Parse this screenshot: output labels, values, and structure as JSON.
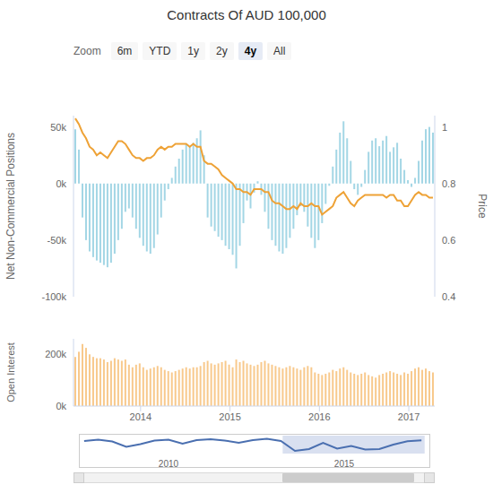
{
  "chart_data": [
    {
      "type": "bar",
      "title": "Contracts Of AUD 100,000",
      "y_label": "Net Non-Commercial Positions",
      "y2_label": "Price",
      "x": [
        2013.27,
        2013.31,
        2013.35,
        2013.39,
        2013.43,
        2013.47,
        2013.51,
        2013.55,
        2013.59,
        2013.63,
        2013.67,
        2013.71,
        2013.75,
        2013.79,
        2013.83,
        2013.87,
        2013.91,
        2013.95,
        2013.99,
        2014.03,
        2014.07,
        2014.11,
        2014.15,
        2014.19,
        2014.23,
        2014.27,
        2014.31,
        2014.35,
        2014.39,
        2014.43,
        2014.47,
        2014.51,
        2014.55,
        2014.59,
        2014.63,
        2014.67,
        2014.71,
        2014.75,
        2014.79,
        2014.83,
        2014.87,
        2014.91,
        2014.95,
        2014.99,
        2015.03,
        2015.07,
        2015.11,
        2015.15,
        2015.19,
        2015.23,
        2015.27,
        2015.31,
        2015.35,
        2015.39,
        2015.43,
        2015.47,
        2015.51,
        2015.55,
        2015.59,
        2015.63,
        2015.67,
        2015.71,
        2015.75,
        2015.79,
        2015.83,
        2015.87,
        2015.91,
        2015.95,
        2015.99,
        2016.03,
        2016.07,
        2016.11,
        2016.15,
        2016.19,
        2016.23,
        2016.27,
        2016.31,
        2016.35,
        2016.39,
        2016.43,
        2016.47,
        2016.51,
        2016.55,
        2016.59,
        2016.63,
        2016.67,
        2016.71,
        2016.75,
        2016.79,
        2016.83,
        2016.87,
        2016.91,
        2016.95,
        2016.99,
        2017.03,
        2017.07,
        2017.11,
        2017.15,
        2017.19,
        2017.23,
        2017.27
      ],
      "xlim": [
        2013.25,
        2017.29
      ],
      "ylim": [
        -100000,
        60000
      ],
      "yticks": [
        {
          "value": -100000,
          "label": "-100k"
        },
        {
          "value": -50000,
          "label": "-50k"
        },
        {
          "value": 0,
          "label": "0k"
        },
        {
          "value": 50000,
          "label": "50k"
        }
      ],
      "y2lim": [
        0.4,
        1.04
      ],
      "y2ticks": [
        0.4,
        0.6,
        0.8,
        1
      ],
      "grid": false,
      "series": [
        {
          "type": "bar",
          "color": "#a3d6e5",
          "values": [
            48000,
            30000,
            -30000,
            -50000,
            -60000,
            -65000,
            -68000,
            -70000,
            -72000,
            -74000,
            -70000,
            -62000,
            -50000,
            -40000,
            -25000,
            -22000,
            -30000,
            -40000,
            -48000,
            -55000,
            -60000,
            -62000,
            -57000,
            -45000,
            -30000,
            -15000,
            -5000,
            5000,
            15000,
            22000,
            30000,
            35000,
            33000,
            36000,
            40000,
            47000,
            25000,
            -30000,
            -38000,
            -42000,
            -47000,
            -50000,
            -55000,
            -58000,
            -63000,
            -75000,
            -55000,
            -35000,
            -15000,
            -22000,
            -8000,
            2000,
            -10000,
            -25000,
            -40000,
            -50000,
            -55000,
            -60000,
            -62000,
            -57000,
            -48000,
            -40000,
            -28000,
            -20000,
            -25000,
            -38000,
            -48000,
            -57000,
            -50000,
            -35000,
            -18000,
            -2000,
            15000,
            30000,
            45000,
            55000,
            40000,
            20000,
            -5000,
            -10000,
            -3000,
            12000,
            28000,
            38000,
            40000,
            33000,
            38000,
            42000,
            28000,
            32000,
            36000,
            22000,
            12000,
            3000,
            -3000,
            5000,
            20000,
            38000,
            48000,
            50000,
            45000
          ]
        },
        {
          "type": "line",
          "color": "#eea236",
          "axis": "y2",
          "values": [
            1.03,
            1.01,
            0.98,
            0.96,
            0.93,
            0.92,
            0.9,
            0.91,
            0.9,
            0.89,
            0.91,
            0.93,
            0.95,
            0.95,
            0.94,
            0.92,
            0.9,
            0.89,
            0.89,
            0.88,
            0.89,
            0.89,
            0.9,
            0.92,
            0.93,
            0.92,
            0.93,
            0.93,
            0.94,
            0.94,
            0.94,
            0.94,
            0.93,
            0.94,
            0.93,
            0.93,
            0.88,
            0.87,
            0.87,
            0.86,
            0.85,
            0.83,
            0.82,
            0.81,
            0.8,
            0.78,
            0.78,
            0.77,
            0.77,
            0.76,
            0.78,
            0.78,
            0.78,
            0.77,
            0.77,
            0.74,
            0.73,
            0.73,
            0.72,
            0.71,
            0.71,
            0.72,
            0.71,
            0.73,
            0.72,
            0.72,
            0.73,
            0.72,
            0.72,
            0.69,
            0.7,
            0.71,
            0.72,
            0.75,
            0.76,
            0.77,
            0.75,
            0.73,
            0.72,
            0.74,
            0.75,
            0.76,
            0.76,
            0.76,
            0.76,
            0.76,
            0.76,
            0.75,
            0.76,
            0.76,
            0.74,
            0.74,
            0.72,
            0.72,
            0.74,
            0.76,
            0.77,
            0.76,
            0.76,
            0.75,
            0.75
          ]
        }
      ]
    },
    {
      "type": "bar",
      "y_label": "Open Interest",
      "x": [
        2013.27,
        2013.31,
        2013.35,
        2013.39,
        2013.43,
        2013.47,
        2013.51,
        2013.55,
        2013.59,
        2013.63,
        2013.67,
        2013.71,
        2013.75,
        2013.79,
        2013.83,
        2013.87,
        2013.91,
        2013.95,
        2013.99,
        2014.03,
        2014.07,
        2014.11,
        2014.15,
        2014.19,
        2014.23,
        2014.27,
        2014.31,
        2014.35,
        2014.39,
        2014.43,
        2014.47,
        2014.51,
        2014.55,
        2014.59,
        2014.63,
        2014.67,
        2014.71,
        2014.75,
        2014.79,
        2014.83,
        2014.87,
        2014.91,
        2014.95,
        2014.99,
        2015.03,
        2015.07,
        2015.11,
        2015.15,
        2015.19,
        2015.23,
        2015.27,
        2015.31,
        2015.35,
        2015.39,
        2015.43,
        2015.47,
        2015.51,
        2015.55,
        2015.59,
        2015.63,
        2015.67,
        2015.71,
        2015.75,
        2015.79,
        2015.83,
        2015.87,
        2015.91,
        2015.95,
        2015.99,
        2016.03,
        2016.07,
        2016.11,
        2016.15,
        2016.19,
        2016.23,
        2016.27,
        2016.31,
        2016.35,
        2016.39,
        2016.43,
        2016.47,
        2016.51,
        2016.55,
        2016.59,
        2016.63,
        2016.67,
        2016.71,
        2016.75,
        2016.79,
        2016.83,
        2016.87,
        2016.91,
        2016.95,
        2016.99,
        2017.03,
        2017.07,
        2017.11,
        2017.15,
        2017.19,
        2017.23,
        2017.27
      ],
      "xlim": [
        2013.25,
        2017.29
      ],
      "xticks": [
        2014,
        2015,
        2016,
        2017
      ],
      "ylim": [
        0,
        260000
      ],
      "yticks": [
        {
          "value": 0,
          "label": "0k"
        },
        {
          "value": 200000,
          "label": "200k"
        }
      ],
      "grid": false,
      "color": "#f8c98c",
      "values": [
        190000,
        210000,
        240000,
        225000,
        200000,
        190000,
        185000,
        185000,
        180000,
        170000,
        175000,
        185000,
        180000,
        175000,
        180000,
        160000,
        150000,
        160000,
        165000,
        150000,
        140000,
        145000,
        150000,
        155000,
        150000,
        140000,
        135000,
        130000,
        135000,
        140000,
        145000,
        150000,
        145000,
        150000,
        150000,
        155000,
        170000,
        175000,
        165000,
        160000,
        165000,
        170000,
        175000,
        160000,
        150000,
        180000,
        170000,
        175000,
        165000,
        160000,
        155000,
        160000,
        170000,
        175000,
        165000,
        160000,
        155000,
        150000,
        145000,
        150000,
        155000,
        150000,
        145000,
        140000,
        150000,
        155000,
        150000,
        130000,
        125000,
        120000,
        125000,
        130000,
        140000,
        135000,
        145000,
        150000,
        140000,
        130000,
        125000,
        120000,
        125000,
        130000,
        120000,
        115000,
        110000,
        120000,
        125000,
        130000,
        135000,
        130000,
        125000,
        120000,
        130000,
        125000,
        135000,
        145000,
        150000,
        140000,
        145000,
        135000,
        130000
      ]
    },
    {
      "type": "line",
      "x": [
        2007.6,
        2008.0,
        2008.4,
        2008.8,
        2009.2,
        2009.6,
        2010.0,
        2010.4,
        2010.8,
        2011.2,
        2011.6,
        2012.0,
        2012.4,
        2012.8,
        2013.2,
        2013.6,
        2014.0,
        2014.4,
        2014.8,
        2015.2,
        2015.6,
        2016.0,
        2016.4,
        2016.8,
        2017.2
      ],
      "xlim": [
        2007.45,
        2017.45
      ],
      "xticks": [
        2010,
        2015
      ],
      "ylim": [
        -100000,
        100000
      ],
      "tick_labels": "x",
      "color": "#4a6fb0",
      "values": [
        40000,
        55000,
        35000,
        -25000,
        5000,
        45000,
        55000,
        10000,
        50000,
        60000,
        45000,
        20000,
        50000,
        65000,
        40000,
        -70000,
        -50000,
        20000,
        -45000,
        -15000,
        -55000,
        -50000,
        0,
        38000,
        48000
      ]
    }
  ],
  "range_selector": {
    "label": "Zoom",
    "buttons": [
      "6m",
      "YTD",
      "1y",
      "2y",
      "4y",
      "All"
    ],
    "selected": "4y"
  }
}
